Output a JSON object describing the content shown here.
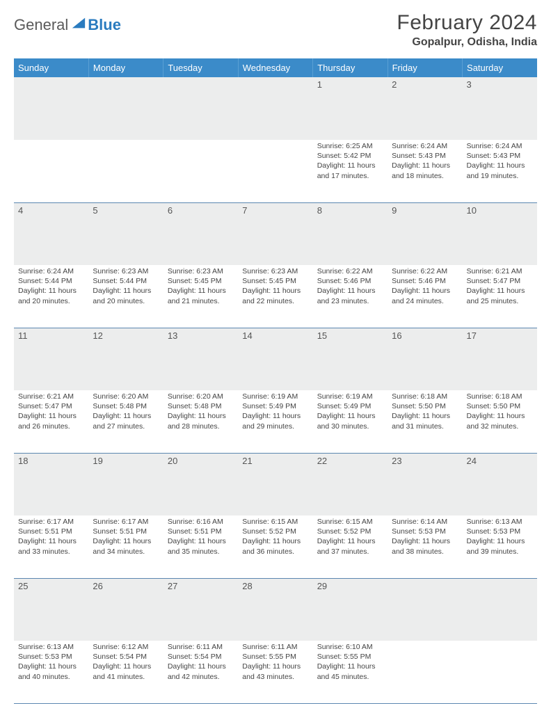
{
  "brand": {
    "part1": "General",
    "part2": "Blue"
  },
  "title": "February 2024",
  "location": "Gopalpur, Odisha, India",
  "colors": {
    "header_bg": "#3b8bc9",
    "header_text": "#ffffff",
    "daynum_bg": "#eceded",
    "rule": "#5a86b0",
    "brand_blue": "#2a7bbf",
    "text": "#444444"
  },
  "weekdays": [
    "Sunday",
    "Monday",
    "Tuesday",
    "Wednesday",
    "Thursday",
    "Friday",
    "Saturday"
  ],
  "layout": {
    "cols": 7,
    "rows": 5,
    "first_weekday_index": 4,
    "days_in_month": 29
  },
  "days": {
    "1": {
      "sunrise": "6:25 AM",
      "sunset": "5:42 PM",
      "daylight": "11 hours and 17 minutes."
    },
    "2": {
      "sunrise": "6:24 AM",
      "sunset": "5:43 PM",
      "daylight": "11 hours and 18 minutes."
    },
    "3": {
      "sunrise": "6:24 AM",
      "sunset": "5:43 PM",
      "daylight": "11 hours and 19 minutes."
    },
    "4": {
      "sunrise": "6:24 AM",
      "sunset": "5:44 PM",
      "daylight": "11 hours and 20 minutes."
    },
    "5": {
      "sunrise": "6:23 AM",
      "sunset": "5:44 PM",
      "daylight": "11 hours and 20 minutes."
    },
    "6": {
      "sunrise": "6:23 AM",
      "sunset": "5:45 PM",
      "daylight": "11 hours and 21 minutes."
    },
    "7": {
      "sunrise": "6:23 AM",
      "sunset": "5:45 PM",
      "daylight": "11 hours and 22 minutes."
    },
    "8": {
      "sunrise": "6:22 AM",
      "sunset": "5:46 PM",
      "daylight": "11 hours and 23 minutes."
    },
    "9": {
      "sunrise": "6:22 AM",
      "sunset": "5:46 PM",
      "daylight": "11 hours and 24 minutes."
    },
    "10": {
      "sunrise": "6:21 AM",
      "sunset": "5:47 PM",
      "daylight": "11 hours and 25 minutes."
    },
    "11": {
      "sunrise": "6:21 AM",
      "sunset": "5:47 PM",
      "daylight": "11 hours and 26 minutes."
    },
    "12": {
      "sunrise": "6:20 AM",
      "sunset": "5:48 PM",
      "daylight": "11 hours and 27 minutes."
    },
    "13": {
      "sunrise": "6:20 AM",
      "sunset": "5:48 PM",
      "daylight": "11 hours and 28 minutes."
    },
    "14": {
      "sunrise": "6:19 AM",
      "sunset": "5:49 PM",
      "daylight": "11 hours and 29 minutes."
    },
    "15": {
      "sunrise": "6:19 AM",
      "sunset": "5:49 PM",
      "daylight": "11 hours and 30 minutes."
    },
    "16": {
      "sunrise": "6:18 AM",
      "sunset": "5:50 PM",
      "daylight": "11 hours and 31 minutes."
    },
    "17": {
      "sunrise": "6:18 AM",
      "sunset": "5:50 PM",
      "daylight": "11 hours and 32 minutes."
    },
    "18": {
      "sunrise": "6:17 AM",
      "sunset": "5:51 PM",
      "daylight": "11 hours and 33 minutes."
    },
    "19": {
      "sunrise": "6:17 AM",
      "sunset": "5:51 PM",
      "daylight": "11 hours and 34 minutes."
    },
    "20": {
      "sunrise": "6:16 AM",
      "sunset": "5:51 PM",
      "daylight": "11 hours and 35 minutes."
    },
    "21": {
      "sunrise": "6:15 AM",
      "sunset": "5:52 PM",
      "daylight": "11 hours and 36 minutes."
    },
    "22": {
      "sunrise": "6:15 AM",
      "sunset": "5:52 PM",
      "daylight": "11 hours and 37 minutes."
    },
    "23": {
      "sunrise": "6:14 AM",
      "sunset": "5:53 PM",
      "daylight": "11 hours and 38 minutes."
    },
    "24": {
      "sunrise": "6:13 AM",
      "sunset": "5:53 PM",
      "daylight": "11 hours and 39 minutes."
    },
    "25": {
      "sunrise": "6:13 AM",
      "sunset": "5:53 PM",
      "daylight": "11 hours and 40 minutes."
    },
    "26": {
      "sunrise": "6:12 AM",
      "sunset": "5:54 PM",
      "daylight": "11 hours and 41 minutes."
    },
    "27": {
      "sunrise": "6:11 AM",
      "sunset": "5:54 PM",
      "daylight": "11 hours and 42 minutes."
    },
    "28": {
      "sunrise": "6:11 AM",
      "sunset": "5:55 PM",
      "daylight": "11 hours and 43 minutes."
    },
    "29": {
      "sunrise": "6:10 AM",
      "sunset": "5:55 PM",
      "daylight": "11 hours and 45 minutes."
    }
  },
  "labels": {
    "sunrise": "Sunrise: ",
    "sunset": "Sunset: ",
    "daylight": "Daylight: "
  }
}
